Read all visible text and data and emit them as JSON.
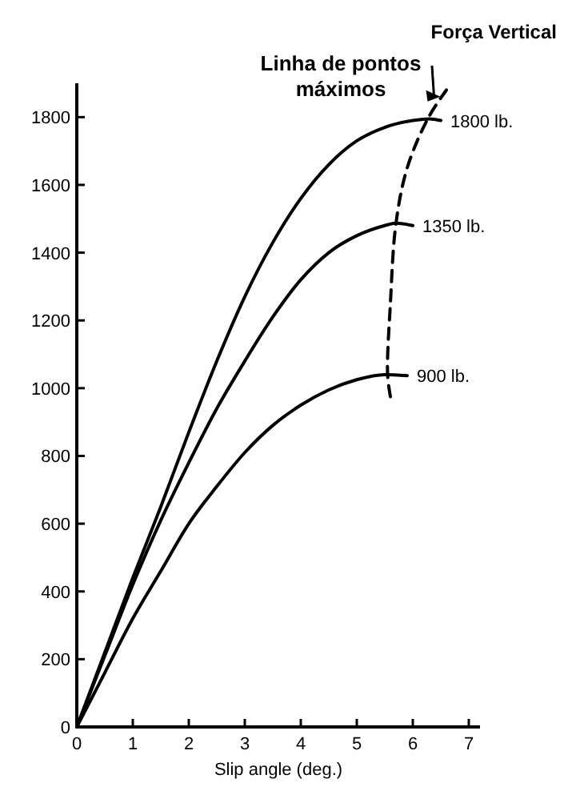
{
  "chart_data": {
    "type": "line",
    "xlabel": "Slip angle (deg.)",
    "legend_title": "Força Vertical",
    "xlim": [
      0,
      7.2
    ],
    "ylim": [
      0,
      1900
    ],
    "xticks": [
      0,
      1,
      2,
      3,
      4,
      5,
      6,
      7
    ],
    "yticks": [
      0,
      200,
      400,
      600,
      800,
      1000,
      1200,
      1400,
      1600,
      1800
    ],
    "grid": false,
    "legend": "right",
    "marker": "none",
    "series": [
      {
        "name": "1800 lb.",
        "color": "#000000",
        "x": [
          0,
          0.5,
          1,
          1.5,
          2,
          2.5,
          3,
          3.5,
          4,
          4.5,
          5,
          5.5,
          6,
          6.3,
          6.5
        ],
        "values": [
          0,
          220,
          440,
          650,
          870,
          1080,
          1270,
          1430,
          1560,
          1660,
          1730,
          1770,
          1790,
          1795,
          1790
        ]
      },
      {
        "name": "1350 lb.",
        "color": "#000000",
        "x": [
          0,
          0.5,
          1,
          1.5,
          2,
          2.5,
          3,
          3.5,
          4,
          4.5,
          5,
          5.5,
          5.7,
          6
        ],
        "values": [
          0,
          210,
          420,
          610,
          780,
          940,
          1080,
          1210,
          1320,
          1400,
          1450,
          1480,
          1487,
          1480
        ]
      },
      {
        "name": "900 lb.",
        "color": "#000000",
        "x": [
          0,
          0.5,
          1,
          1.5,
          2,
          2.5,
          3,
          3.5,
          4,
          4.5,
          5,
          5.5,
          5.9
        ],
        "values": [
          0,
          160,
          320,
          460,
          600,
          710,
          810,
          890,
          950,
          995,
          1025,
          1040,
          1037
        ]
      },
      {
        "color": "#000000",
        "line_style": "dashed",
        "x": [
          5.6,
          5.55,
          5.6,
          5.7,
          5.9,
          6.27,
          6.6
        ],
        "values": [
          975,
          1040,
          1250,
          1487,
          1650,
          1796,
          1880
        ]
      }
    ],
    "annotations": [
      {
        "text": "Linha de pontos máximos",
        "x": 6.55,
        "y": 1870
      }
    ]
  }
}
